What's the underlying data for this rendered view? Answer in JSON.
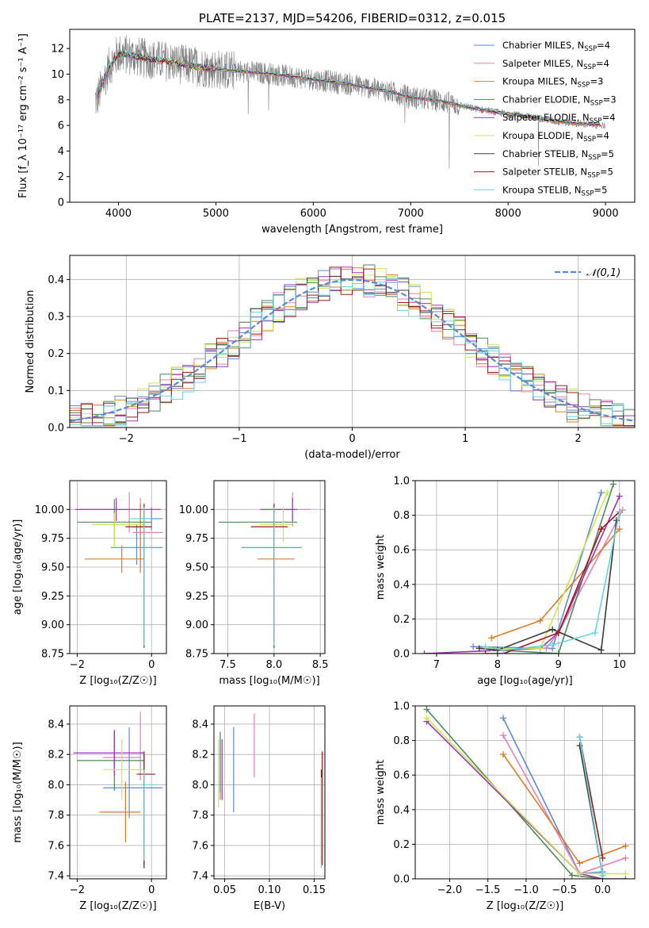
{
  "figure_title": "PLATE=2137, MJD=54206, FIBERID=0312, z=0.015",
  "models": [
    {
      "name": "Chabrier MILES",
      "nssp": "4",
      "color": "#5b8ad8"
    },
    {
      "name": "Salpeter MILES",
      "nssp": "4",
      "color": "#e87fb5"
    },
    {
      "name": "Kroupa MILES",
      "nssp": "3",
      "color": "#e07b24"
    },
    {
      "name": "Chabrier ELODIE",
      "nssp": "3",
      "color": "#4e8a58"
    },
    {
      "name": "Salpeter ELODIE",
      "nssp": "4",
      "color": "#9b33b8"
    },
    {
      "name": "Kroupa ELODIE",
      "nssp": "4",
      "color": "#c8e850"
    },
    {
      "name": "Chabrier STELIB",
      "nssp": "5",
      "color": "#3a3a3a"
    },
    {
      "name": "Salpeter STELIB",
      "nssp": "5",
      "color": "#a01818"
    },
    {
      "name": "Kroupa STELIB",
      "nssp": "5",
      "color": "#66d6e0"
    }
  ],
  "chart_data": [
    {
      "id": "spectrum",
      "type": "line",
      "title": "PLATE=2137, MJD=54206, FIBERID=0312, z=0.015",
      "xlabel": "wavelength [Angstrom, rest frame]",
      "ylabel": "Flux [f_λ 10⁻¹⁷ erg cm⁻² s⁻¹ A⁻¹]",
      "xlim": [
        3500,
        9300
      ],
      "ylim": [
        0,
        13.5
      ],
      "xticks": [
        4000,
        5000,
        6000,
        7000,
        8000,
        9000
      ],
      "yticks": [
        0,
        2,
        4,
        6,
        8,
        10,
        12
      ],
      "grid": false,
      "legend": "upper right",
      "data_color": "#808080",
      "continuum": {
        "x": [
          3780,
          3900,
          4000,
          4100,
          4300,
          4500,
          4700,
          5000,
          5300,
          5600,
          6000,
          6300,
          6600,
          6800,
          7000,
          7300,
          7600,
          7900,
          8200,
          8500,
          8800,
          9000
        ],
        "y": [
          8.0,
          10.5,
          11.6,
          11.5,
          11.2,
          11.0,
          10.7,
          10.4,
          10.2,
          10.0,
          9.6,
          9.3,
          8.9,
          8.6,
          8.2,
          7.9,
          7.4,
          7.0,
          6.7,
          6.3,
          6.1,
          6.0
        ]
      }
    },
    {
      "id": "residuals",
      "type": "line",
      "xlabel": "(data-model)/error",
      "ylabel": "Normed distribution",
      "xlim": [
        -2.5,
        2.5
      ],
      "ylim": [
        0,
        0.465
      ],
      "xticks": [
        -2,
        -1,
        0,
        1,
        2
      ],
      "yticks": [
        0.0,
        0.1,
        0.2,
        0.3,
        0.4
      ],
      "grid": true,
      "legend": "upper right",
      "legend_label": "𝒩(0,1)",
      "curve": {
        "name": "N(0,1)",
        "mean": 0,
        "sigma": 1,
        "color": "#5b8ad8"
      }
    },
    {
      "id": "age_vs_Z",
      "type": "scatter",
      "xlabel": "Z [log₁₀(Z/Z☉)]",
      "ylabel": "age  [log₁₀(age/yr)]",
      "xlim": [
        -2.2,
        0.4
      ],
      "ylim": [
        8.75,
        10.25
      ],
      "xticks": [
        -2,
        0
      ],
      "yticks": [
        8.75,
        9.0,
        9.25,
        9.5,
        9.75,
        10.0
      ],
      "grid": true,
      "points": [
        {
          "m": 0,
          "x": -0.4,
          "xerr": [
            0.7,
            0.7
          ],
          "y": 9.67,
          "yerr": [
            0.15,
            0.2
          ]
        },
        {
          "m": 0,
          "x": 0.0,
          "xerr": [
            0.3,
            0.3
          ],
          "y": 9.92,
          "yerr": [
            0.1,
            0.1
          ]
        },
        {
          "m": 1,
          "x": -0.6,
          "xerr": [
            1.4,
            0.0
          ],
          "y": 10.0,
          "yerr": [
            0.2,
            0.15
          ]
        },
        {
          "m": 1,
          "x": -0.3,
          "xerr": [
            0.2,
            0.6
          ],
          "y": 9.8,
          "yerr": [
            0.3,
            0.3
          ]
        },
        {
          "m": 2,
          "x": -0.8,
          "xerr": [
            1.0,
            0.6
          ],
          "y": 9.57,
          "yerr": [
            0.12,
            0.12
          ]
        },
        {
          "m": 2,
          "x": -0.3,
          "xerr": [
            0.2,
            0.3
          ],
          "y": 9.85,
          "yerr": [
            0.4,
            0.2
          ]
        },
        {
          "m": 3,
          "x": -1.0,
          "xerr": [
            1.0,
            1.0
          ],
          "y": 9.89,
          "yerr": [
            0.15,
            0.2
          ]
        },
        {
          "m": 4,
          "x": -0.95,
          "xerr": [
            1.1,
            1.2
          ],
          "y": 10.0,
          "yerr": [
            0.1,
            0.1
          ]
        },
        {
          "m": 5,
          "x": -1.0,
          "xerr": [
            0.6,
            0.8
          ],
          "y": 9.87,
          "yerr": [
            0.2,
            0.1
          ]
        },
        {
          "m": 6,
          "x": -0.2,
          "xerr": [
            0.0,
            0.0
          ],
          "y": 9.2,
          "yerr": [
            0.4,
            0.8
          ]
        },
        {
          "m": 7,
          "x": -0.2,
          "xerr": [
            0.5,
            0.2
          ],
          "y": 9.85,
          "yerr": [
            1.0,
            0.2
          ]
        },
        {
          "m": 8,
          "x": -0.2,
          "xerr": [
            0.4,
            0.2
          ],
          "y": 9.92,
          "yerr": [
            1.1,
            0.1
          ]
        }
      ]
    },
    {
      "id": "age_vs_mass",
      "type": "scatter",
      "xlabel": "mass [log₁₀(M/M☉)]",
      "ylabel": "",
      "xlim": [
        7.35,
        8.55
      ],
      "ylim": [
        8.75,
        10.25
      ],
      "xticks": [
        7.5,
        8.0,
        8.5
      ],
      "yticks": [
        8.75,
        9.0,
        9.25,
        9.5,
        9.75,
        10.0
      ],
      "grid": true,
      "points": [
        {
          "m": 0,
          "x": 8.0,
          "xerr": [
            0.35,
            0.3
          ],
          "y": 9.67,
          "yerr": [
            0.15,
            0.2
          ]
        },
        {
          "m": 1,
          "x": 8.2,
          "xerr": [
            0.2,
            0.2
          ],
          "y": 10.0,
          "yerr": [
            0.15,
            0.15
          ]
        },
        {
          "m": 2,
          "x": 8.0,
          "xerr": [
            0.18,
            0.22
          ],
          "y": 9.57,
          "yerr": [
            0.12,
            0.12
          ]
        },
        {
          "m": 3,
          "x": 8.0,
          "xerr": [
            0.6,
            0.25
          ],
          "y": 9.89,
          "yerr": [
            0.15,
            0.15
          ]
        },
        {
          "m": 4,
          "x": 8.2,
          "xerr": [
            0.35,
            0.05
          ],
          "y": 10.0,
          "yerr": [
            0.1,
            0.1
          ]
        },
        {
          "m": 5,
          "x": 8.1,
          "xerr": [
            0.25,
            0.1
          ],
          "y": 9.87,
          "yerr": [
            0.15,
            0.15
          ]
        },
        {
          "m": 6,
          "x": 8.0,
          "xerr": [
            0.0,
            0.0
          ],
          "y": 9.2,
          "yerr": [
            0.4,
            0.8
          ]
        },
        {
          "m": 7,
          "x": 8.0,
          "xerr": [
            0.25,
            0.15
          ],
          "y": 9.85,
          "yerr": [
            1.0,
            0.2
          ]
        },
        {
          "m": 8,
          "x": 8.0,
          "xerr": [
            0.0,
            0.0
          ],
          "y": 9.92,
          "yerr": [
            1.1,
            0.1
          ]
        }
      ]
    },
    {
      "id": "massweight_vs_age",
      "type": "line",
      "xlabel": "age  [log₁₀(age/yr)]",
      "ylabel": "mass weight",
      "xlim": [
        6.65,
        10.25
      ],
      "ylim": [
        0,
        1.0
      ],
      "xticks": [
        7,
        8,
        9,
        10
      ],
      "yticks": [
        0.0,
        0.2,
        0.4,
        0.6,
        0.8,
        1.0
      ],
      "grid": true,
      "series": [
        {
          "m": 0,
          "x": [
            7.6,
            8.9,
            9.7
          ],
          "y": [
            0.04,
            0.03,
            0.93
          ]
        },
        {
          "m": 1,
          "x": [
            8.8,
            9.0,
            10.05
          ],
          "y": [
            0.03,
            0.12,
            0.83
          ]
        },
        {
          "m": 2,
          "x": [
            7.9,
            8.7,
            10.0
          ],
          "y": [
            0.09,
            0.19,
            0.72
          ]
        },
        {
          "m": 3,
          "x": [
            8.0,
            9.0,
            9.9
          ],
          "y": [
            0.02,
            0.0,
            0.98
          ]
        },
        {
          "m": 4,
          "x": [
            6.8,
            8.7,
            9.0,
            10.0
          ],
          "y": [
            0.0,
            0.03,
            0.12,
            0.91
          ]
        },
        {
          "m": 5,
          "x": [
            7.9,
            8.7,
            9.8
          ],
          "y": [
            0.03,
            0.03,
            0.93
          ]
        },
        {
          "m": 6,
          "x": [
            7.7,
            8.0,
            8.9,
            9.7,
            9.95
          ],
          "y": [
            0.03,
            0.02,
            0.14,
            0.02,
            0.77
          ]
        },
        {
          "m": 7,
          "x": [
            7.8,
            8.1,
            9.0,
            9.7,
            10.0
          ],
          "y": [
            0.0,
            0.0,
            0.12,
            0.72,
            0.82
          ]
        },
        {
          "m": 8,
          "x": [
            7.8,
            8.1,
            8.9,
            9.6,
            10.0
          ],
          "y": [
            0.04,
            0.02,
            0.05,
            0.12,
            0.82
          ]
        }
      ]
    },
    {
      "id": "mass_vs_Z",
      "type": "scatter",
      "xlabel": "Z [log₁₀(Z/Z☉)]",
      "ylabel": "mass [log₁₀(M/M☉)]",
      "xlim": [
        -2.2,
        0.4
      ],
      "ylim": [
        7.38,
        8.52
      ],
      "xticks": [
        -2,
        0
      ],
      "yticks": [
        7.4,
        7.6,
        7.8,
        8.0,
        8.2,
        8.4
      ],
      "grid": true,
      "points": [
        {
          "m": 0,
          "x": -0.6,
          "xerr": [
            0.7,
            0.9
          ],
          "y": 7.98,
          "yerr": [
            0.2,
            0.4
          ]
        },
        {
          "m": 1,
          "x": -0.3,
          "xerr": [
            1.0,
            0.0
          ],
          "y": 8.18,
          "yerr": [
            0.15,
            0.3
          ]
        },
        {
          "m": 2,
          "x": -0.7,
          "xerr": [
            0.7,
            0.4
          ],
          "y": 7.82,
          "yerr": [
            0.2,
            0.2
          ]
        },
        {
          "m": 3,
          "x": -1.0,
          "xerr": [
            1.0,
            0.8
          ],
          "y": 8.16,
          "yerr": [
            0.2,
            0.2
          ]
        },
        {
          "m": 4,
          "x": -1.0,
          "xerr": [
            1.1,
            0.8
          ],
          "y": 8.21,
          "yerr": [
            0.15,
            0.15
          ]
        },
        {
          "m": 5,
          "x": -0.8,
          "xerr": [
            0.5,
            0.6
          ],
          "y": 8.1,
          "yerr": [
            0.2,
            0.2
          ]
        },
        {
          "m": 6,
          "x": -0.2,
          "xerr": [
            0.0,
            0.0
          ],
          "y": 7.9,
          "yerr": [
            0.45,
            0.3
          ]
        },
        {
          "m": 7,
          "x": -0.2,
          "xerr": [
            0.2,
            0.3
          ],
          "y": 8.07,
          "yerr": [
            0.6,
            0.15
          ]
        },
        {
          "m": 8,
          "x": -0.2,
          "xerr": [
            0.0,
            0.3
          ],
          "y": 8.0,
          "yerr": [
            0.5,
            0.1
          ]
        }
      ]
    },
    {
      "id": "mass_vs_EBV",
      "type": "scatter",
      "xlabel": "E(B-V)",
      "ylabel": "",
      "xlim": [
        0.038,
        0.162
      ],
      "ylim": [
        7.38,
        8.52
      ],
      "xticks": [
        0.05,
        0.1,
        0.15
      ],
      "yticks": [
        7.4,
        7.6,
        7.8,
        8.0,
        8.2,
        8.4
      ],
      "grid": true,
      "points": [
        {
          "m": 0,
          "x": 0.06,
          "xerr": [
            0,
            0
          ],
          "y": 8.0,
          "yerr": [
            0.18,
            0.38
          ]
        },
        {
          "m": 1,
          "x": 0.083,
          "xerr": [
            0,
            0
          ],
          "y": 8.2,
          "yerr": [
            0.15,
            0.27
          ]
        },
        {
          "m": 2,
          "x": 0.045,
          "xerr": [
            0,
            0
          ],
          "y": 8.1,
          "yerr": [
            0.2,
            0.2
          ]
        },
        {
          "m": 3,
          "x": 0.045,
          "xerr": [
            0,
            0
          ],
          "y": 8.15,
          "yerr": [
            0.2,
            0.2
          ]
        },
        {
          "m": 4,
          "x": 0.047,
          "xerr": [
            0,
            0
          ],
          "y": 8.1,
          "yerr": [
            0.2,
            0.2
          ]
        },
        {
          "m": 5,
          "x": 0.043,
          "xerr": [
            0,
            0
          ],
          "y": 8.1,
          "yerr": [
            0.25,
            0.2
          ]
        },
        {
          "m": 6,
          "x": 0.158,
          "xerr": [
            0,
            0
          ],
          "y": 7.9,
          "yerr": [
            0.4,
            0.2
          ]
        },
        {
          "m": 7,
          "x": 0.159,
          "xerr": [
            0,
            0
          ],
          "y": 8.07,
          "yerr": [
            0.6,
            0.15
          ]
        },
        {
          "m": 8,
          "x": 0.158,
          "xerr": [
            0,
            0
          ],
          "y": 7.95,
          "yerr": [
            0.5,
            0.1
          ]
        }
      ]
    },
    {
      "id": "massweight_vs_Z",
      "type": "line",
      "xlabel": "Z [log₁₀(Z/Z☉)]",
      "ylabel": "mass weight",
      "xlim": [
        -2.45,
        0.42
      ],
      "ylim": [
        0,
        1.0
      ],
      "xticks": [
        -2.0,
        -1.5,
        -1.0,
        -0.5,
        0.0
      ],
      "yticks": [
        0.0,
        0.2,
        0.4,
        0.6,
        0.8,
        1.0
      ],
      "grid": true,
      "series": [
        {
          "m": 0,
          "x": [
            -1.3,
            -0.3,
            0.0
          ],
          "y": [
            0.93,
            0.03,
            0.04
          ]
        },
        {
          "m": 1,
          "x": [
            -1.3,
            -0.3,
            0.3
          ],
          "y": [
            0.83,
            0.03,
            0.12
          ]
        },
        {
          "m": 2,
          "x": [
            -1.3,
            -0.3,
            0.3
          ],
          "y": [
            0.72,
            0.09,
            0.19
          ]
        },
        {
          "m": 3,
          "x": [
            -2.3,
            -0.4,
            0.0
          ],
          "y": [
            0.98,
            0.02,
            0.0
          ]
        },
        {
          "m": 4,
          "x": [
            -2.3,
            -0.3,
            0.0,
            0.3
          ],
          "y": [
            0.91,
            0.03,
            0.0,
            0.0
          ]
        },
        {
          "m": 5,
          "x": [
            -2.3,
            -0.3,
            0.0,
            0.3
          ],
          "y": [
            0.93,
            0.03,
            0.03,
            0.03
          ]
        },
        {
          "m": 6,
          "x": [
            -0.3,
            0.0
          ],
          "y": [
            0.77,
            0.02
          ]
        },
        {
          "m": 7,
          "x": [
            -0.3,
            0.0
          ],
          "y": [
            0.82,
            0.12
          ]
        },
        {
          "m": 8,
          "x": [
            -0.3,
            0.0
          ],
          "y": [
            0.82,
            0.02
          ]
        }
      ]
    }
  ]
}
